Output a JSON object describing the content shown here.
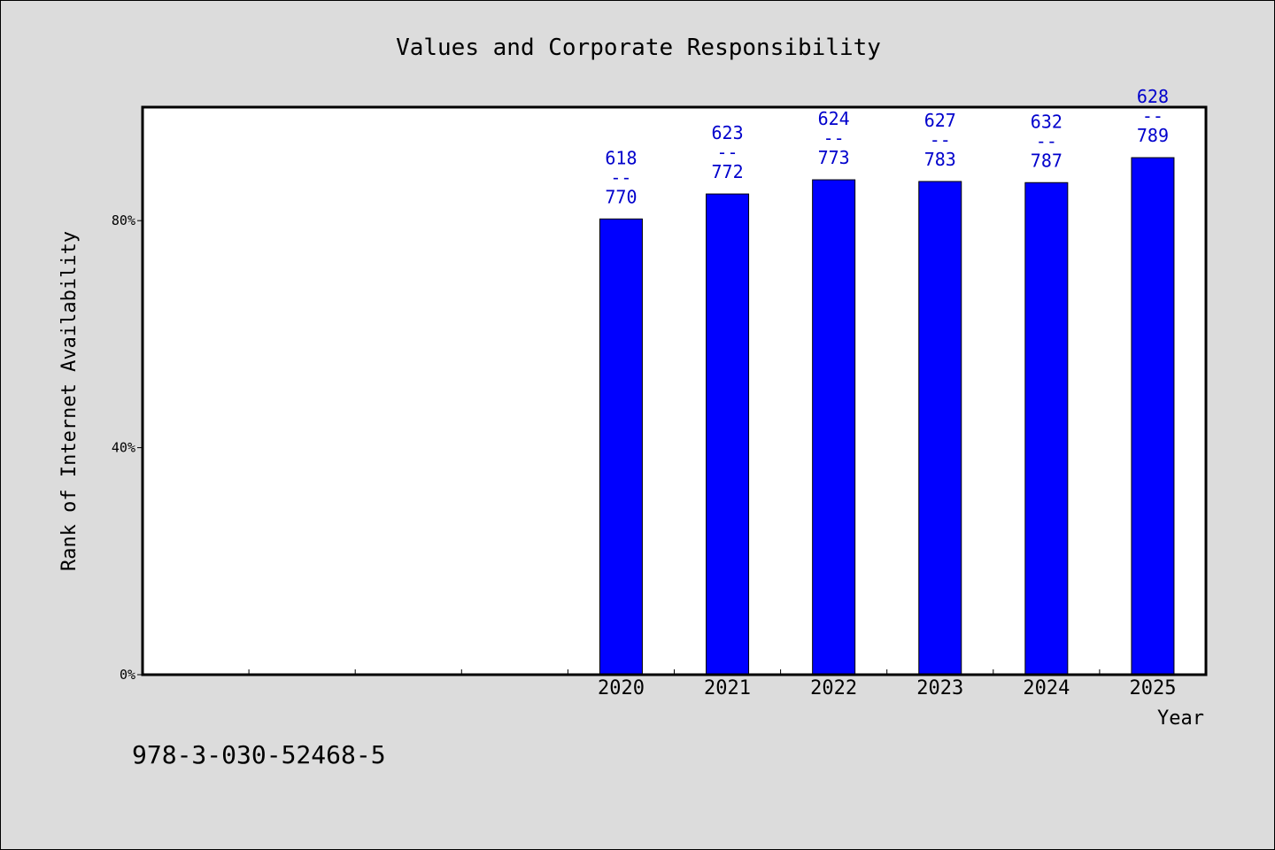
{
  "chart_data": {
    "type": "bar",
    "title": "Values and Corporate Responsibility",
    "xlabel": "Year",
    "ylabel": "Rank of Internet Availability",
    "categories": [
      "",
      "",
      "",
      "",
      "2020",
      "2021",
      "2022",
      "2023",
      "2024",
      "2025"
    ],
    "values": [
      null,
      null,
      null,
      null,
      80.3,
      84.7,
      87.2,
      86.9,
      86.7,
      91.1
    ],
    "data_labels": [
      null,
      null,
      null,
      null,
      [
        "618",
        "--",
        "770"
      ],
      [
        "623",
        "--",
        "772"
      ],
      [
        "624",
        "--",
        "773"
      ],
      [
        "627",
        "--",
        "783"
      ],
      [
        "632",
        "--",
        "787"
      ],
      [
        "628",
        "--",
        "789"
      ]
    ],
    "yticks": [
      {
        "value": 0,
        "label": "0%"
      },
      {
        "value": 40,
        "label": "40%"
      },
      {
        "value": 80,
        "label": "80%"
      }
    ],
    "ylim": [
      0,
      100
    ],
    "grid": false,
    "bar_color": "#0000ff",
    "label_color": "#0000cc"
  },
  "footnote": "978-3-030-52468-5"
}
